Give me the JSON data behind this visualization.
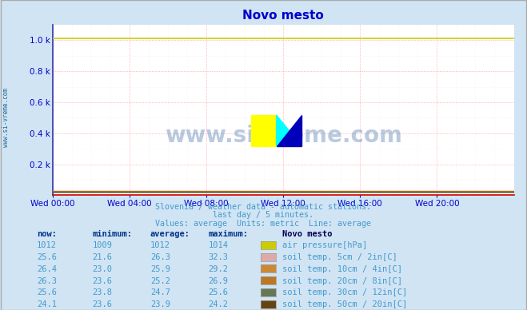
{
  "title": "Novo mesto",
  "title_color": "#0000cc",
  "bg_color": "#d0e4f4",
  "plot_bg_color": "#ffffff",
  "grid_color_major": "#ffaaaa",
  "grid_color_minor": "#ffe8e8",
  "axis_color": "#cc0000",
  "watermark": "www.si-vreme.com",
  "watermark_color": "#1a5296",
  "subtitle1": "Slovenia / weather data - automatic stations.",
  "subtitle2": "last day / 5 minutes.",
  "subtitle3": "Values: average  Units: metric  Line: average",
  "subtitle_color": "#4499cc",
  "xlabel_color": "#0000cc",
  "ylabel_color": "#0000cc",
  "xtick_labels": [
    "Wed 00:00",
    "Wed 04:00",
    "Wed 08:00",
    "Wed 12:00",
    "Wed 16:00",
    "Wed 20:00"
  ],
  "ylim": [
    0,
    1100
  ],
  "xlim": [
    0,
    288
  ],
  "air_pressure_color": "#cccc00",
  "legend_entries": [
    {
      "label": "air pressure[hPa]",
      "color": "#cccc00",
      "now": "1012",
      "min": "1009",
      "avg": "1012",
      "max": "1014"
    },
    {
      "label": "soil temp. 5cm / 2in[C]",
      "color": "#ddaaaa",
      "now": "25.6",
      "min": "21.6",
      "avg": "26.3",
      "max": "32.3"
    },
    {
      "label": "soil temp. 10cm / 4in[C]",
      "color": "#cc8833",
      "now": "26.4",
      "min": "23.0",
      "avg": "25.9",
      "max": "29.2"
    },
    {
      "label": "soil temp. 20cm / 8in[C]",
      "color": "#bb7722",
      "now": "26.3",
      "min": "23.6",
      "avg": "25.2",
      "max": "26.9"
    },
    {
      "label": "soil temp. 30cm / 12in[C]",
      "color": "#667755",
      "now": "25.6",
      "min": "23.8",
      "avg": "24.7",
      "max": "25.6"
    },
    {
      "label": "soil temp. 50cm / 20in[C]",
      "color": "#664411",
      "now": "24.1",
      "min": "23.6",
      "avg": "23.9",
      "max": "24.2"
    }
  ],
  "n_points": 288,
  "pressure_line_y": 1012,
  "left_label": "www.si-vreme.com",
  "left_label_color": "#1a6699"
}
